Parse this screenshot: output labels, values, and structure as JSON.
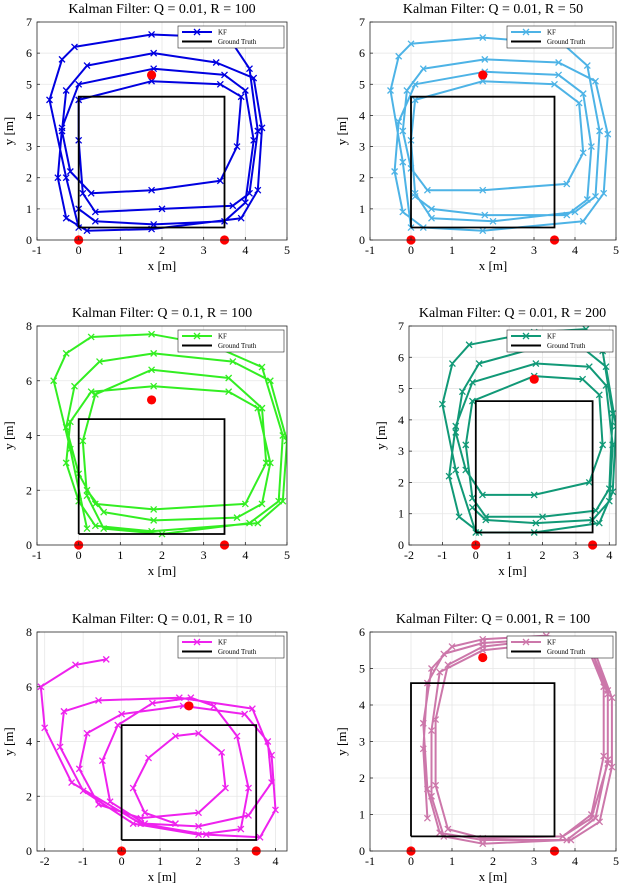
{
  "chart_data": [
    {
      "type": "line",
      "title_prefix": "Kalman Filter: ",
      "q": "Q = 0.01",
      "r": "R = 100",
      "xlabel": "x [m]",
      "ylabel": "y [m]",
      "xlim": [
        -1,
        5
      ],
      "ylim": [
        0,
        7
      ],
      "xticks": [
        -1,
        0,
        1,
        2,
        3,
        4,
        5
      ],
      "yticks": [
        0,
        1,
        2,
        3,
        4,
        5,
        6,
        7
      ],
      "grid": true,
      "legend": [
        "KF",
        "Ground Truth"
      ],
      "legend_position": "top-right",
      "kf_color": "#0000e0",
      "ground_truth": {
        "x": [
          0,
          0,
          3.5,
          3.5,
          0
        ],
        "y": [
          0.4,
          4.6,
          4.6,
          0.4,
          0.4
        ]
      },
      "landmarks": {
        "x": [
          0,
          3.5,
          1.75
        ],
        "y": [
          0,
          0,
          5.3
        ]
      },
      "kf": {
        "x": [
          0.0,
          -0.3,
          -0.7,
          -0.4,
          -0.1,
          1.75,
          3.6,
          4.1,
          4.3,
          4.1,
          3.7,
          2.0,
          0.4,
          0.1,
          0.0,
          0.0,
          1.75,
          3.4,
          3.9,
          3.8,
          3.4,
          1.75,
          0.3,
          -0.2,
          -0.4,
          -0.3,
          0.2,
          1.8,
          3.3,
          4.2,
          4.4,
          4.3,
          3.9,
          1.75,
          0.2,
          -0.3,
          -0.5,
          -0.4,
          0.0,
          1.8,
          3.5,
          4.0,
          4.2,
          4.0,
          3.5,
          1.8,
          0.4,
          0.0
        ],
        "y": [
          0.4,
          2.0,
          4.5,
          5.8,
          6.2,
          6.6,
          6.5,
          5.5,
          3.5,
          1.5,
          1.1,
          1.0,
          0.9,
          1.5,
          3.2,
          4.5,
          5.1,
          5.0,
          4.6,
          3.0,
          1.9,
          1.6,
          1.5,
          2.2,
          3.5,
          4.8,
          5.6,
          6.0,
          5.7,
          5.2,
          3.6,
          1.6,
          0.7,
          0.35,
          0.3,
          0.7,
          2.0,
          3.6,
          5.0,
          5.5,
          5.3,
          4.8,
          3.2,
          1.2,
          0.6,
          0.5,
          0.6,
          1.0
        ]
      }
    },
    {
      "type": "line",
      "title_prefix": "Kalman Filter: ",
      "q": "Q = 0.01",
      "r": "R = 50",
      "xlabel": "x [m]",
      "ylabel": "y [m]",
      "xlim": [
        -1,
        5
      ],
      "ylim": [
        0,
        7
      ],
      "xticks": [
        -1,
        0,
        1,
        2,
        3,
        4,
        5
      ],
      "yticks": [
        0,
        1,
        2,
        3,
        4,
        5,
        6,
        7
      ],
      "grid": true,
      "legend": [
        "KF",
        "Ground Truth"
      ],
      "legend_position": "top-right",
      "kf_color": "#4db3e6",
      "ground_truth": {
        "x": [
          0,
          0,
          3.5,
          3.5,
          0
        ],
        "y": [
          0.4,
          4.6,
          4.6,
          0.4,
          0.4
        ]
      },
      "landmarks": {
        "x": [
          0,
          3.5,
          1.75
        ],
        "y": [
          0,
          0,
          5.3
        ]
      },
      "kf": {
        "x": [
          0.0,
          -0.2,
          -0.5,
          -0.3,
          0.0,
          1.75,
          3.7,
          4.3,
          4.6,
          4.5,
          4.0,
          2.0,
          0.5,
          0.1,
          0.0,
          0.1,
          1.75,
          3.5,
          4.1,
          4.2,
          3.8,
          1.75,
          0.4,
          0.0,
          -0.2,
          -0.1,
          0.3,
          1.8,
          3.6,
          4.5,
          4.8,
          4.7,
          4.2,
          1.75,
          0.3,
          -0.2,
          -0.4,
          -0.3,
          0.1,
          1.8,
          3.6,
          4.2,
          4.4,
          4.3,
          3.8,
          1.8,
          0.5,
          0.1
        ],
        "y": [
          0.4,
          2.5,
          4.8,
          5.9,
          6.3,
          6.5,
          6.3,
          5.6,
          3.5,
          1.4,
          0.9,
          0.6,
          0.7,
          1.5,
          3.2,
          4.5,
          5.1,
          5.0,
          4.4,
          2.8,
          1.8,
          1.6,
          1.6,
          2.3,
          3.5,
          4.8,
          5.5,
          5.8,
          5.7,
          5.1,
          3.4,
          1.5,
          0.6,
          0.3,
          0.4,
          0.9,
          2.2,
          3.8,
          5.0,
          5.4,
          5.3,
          4.7,
          3.0,
          1.3,
          0.8,
          0.8,
          1.0,
          1.4
        ]
      }
    },
    {
      "type": "line",
      "title_prefix": "Kalman Filter: ",
      "q": "Q = 0.1",
      "r": "R = 100",
      "xlabel": "x [m]",
      "ylabel": "y [m]",
      "xlim": [
        -1,
        5
      ],
      "ylim": [
        0,
        8
      ],
      "xticks": [
        -1,
        0,
        1,
        2,
        3,
        4,
        5
      ],
      "yticks": [
        0,
        2,
        4,
        6,
        8
      ],
      "grid": true,
      "legend": [
        "KF",
        "Ground Truth"
      ],
      "legend_position": "top-right",
      "kf_color": "#33ee22",
      "ground_truth": {
        "x": [
          0,
          0,
          3.5,
          3.5,
          0
        ],
        "y": [
          0.4,
          4.6,
          4.6,
          0.4,
          0.4
        ]
      },
      "landmarks": {
        "x": [
          0,
          3.5,
          1.75
        ],
        "y": [
          0,
          0,
          5.3
        ]
      },
      "kf": {
        "x": [
          0.2,
          -0.2,
          -0.6,
          -0.3,
          0.3,
          1.75,
          3.2,
          4.4,
          4.9,
          4.8,
          4.1,
          2.0,
          0.6,
          0.2,
          0.1,
          0.4,
          1.75,
          3.6,
          4.4,
          4.5,
          4.0,
          1.8,
          0.4,
          0.0,
          -0.3,
          -0.1,
          0.5,
          1.8,
          3.7,
          4.6,
          5.0,
          4.9,
          4.3,
          1.75,
          0.4,
          0.0,
          -0.3,
          -0.2,
          0.3,
          1.8,
          3.6,
          4.3,
          4.6,
          4.4,
          3.8,
          1.8,
          0.6,
          0.2
        ],
        "y": [
          0.6,
          3.5,
          6.0,
          7.0,
          7.6,
          7.7,
          7.3,
          6.5,
          4.0,
          1.6,
          0.8,
          0.4,
          0.6,
          1.8,
          3.8,
          5.5,
          6.4,
          6.1,
          5.0,
          3.0,
          1.5,
          1.3,
          1.5,
          2.6,
          4.3,
          5.8,
          6.7,
          7.0,
          6.7,
          6.0,
          3.8,
          1.6,
          0.8,
          0.5,
          0.7,
          1.6,
          3.0,
          4.5,
          5.6,
          5.8,
          5.6,
          5.0,
          3.0,
          1.5,
          1.0,
          0.9,
          1.2,
          2.0
        ]
      }
    },
    {
      "type": "line",
      "title_prefix": "Kalman Filter: ",
      "q": "Q = 0.01",
      "r": "R = 200",
      "xlabel": "x [m]",
      "ylabel": "y [m]",
      "xlim": [
        -2,
        4.2
      ],
      "ylim": [
        0,
        7
      ],
      "xticks": [
        -2,
        -1,
        0,
        1,
        2,
        3,
        4
      ],
      "yticks": [
        0,
        1,
        2,
        3,
        4,
        5,
        6,
        7
      ],
      "grid": true,
      "legend": [
        "KF",
        "Ground Truth"
      ],
      "legend_position": "top-right",
      "kf_color": "#119977",
      "ground_truth": {
        "x": [
          0,
          0,
          3.5,
          3.5,
          0
        ],
        "y": [
          0.4,
          4.6,
          4.6,
          0.4,
          0.4
        ]
      },
      "landmarks": {
        "x": [
          0,
          3.5,
          1.75
        ],
        "y": [
          0,
          0,
          5.3
        ]
      },
      "kf": {
        "x": [
          0.0,
          -0.6,
          -1.0,
          -0.7,
          -0.2,
          1.75,
          3.3,
          3.8,
          4.1,
          4.0,
          3.6,
          2.0,
          0.3,
          -0.1,
          -0.3,
          -0.1,
          1.75,
          3.2,
          3.7,
          3.8,
          3.4,
          1.75,
          0.2,
          -0.3,
          -0.6,
          -0.4,
          0.1,
          1.8,
          3.2,
          3.9,
          4.2,
          4.1,
          3.7,
          1.75,
          0.1,
          -0.5,
          -0.8,
          -0.6,
          -0.1,
          1.8,
          3.4,
          3.9,
          4.1,
          4.0,
          3.5,
          1.8,
          0.3,
          -0.1
        ],
        "y": [
          0.4,
          2.4,
          4.5,
          5.8,
          6.4,
          6.8,
          6.9,
          6.2,
          4.2,
          1.8,
          1.1,
          0.9,
          0.9,
          1.5,
          3.2,
          4.6,
          5.4,
          5.3,
          4.8,
          3.2,
          2.0,
          1.6,
          1.6,
          2.4,
          3.6,
          4.9,
          5.8,
          6.3,
          6.3,
          5.7,
          3.8,
          1.7,
          0.7,
          0.4,
          0.4,
          0.9,
          2.2,
          3.8,
          5.2,
          5.8,
          5.7,
          5.1,
          3.2,
          1.4,
          0.8,
          0.7,
          0.8,
          1.2
        ]
      }
    },
    {
      "type": "line",
      "title_prefix": "Kalman Filter: ",
      "q": "Q = 0.01",
      "r": "R = 10",
      "xlabel": "x [m]",
      "ylabel": "y [m]",
      "xlim": [
        -2.2,
        4.3
      ],
      "ylim": [
        0,
        8
      ],
      "xticks": [
        -2,
        -1,
        0,
        1,
        2,
        3,
        4
      ],
      "yticks": [
        0,
        2,
        4,
        6,
        8
      ],
      "grid": true,
      "legend": [
        "KF",
        "Ground Truth"
      ],
      "legend_position": "top-right",
      "kf_color": "#ee22ee",
      "ground_truth": {
        "x": [
          0,
          0,
          3.5,
          3.5,
          0
        ],
        "y": [
          0.4,
          4.6,
          4.6,
          0.4,
          0.4
        ]
      },
      "landmarks": {
        "x": [
          0,
          3.5,
          1.75
        ],
        "y": [
          0,
          0,
          5.3
        ]
      },
      "kf": {
        "x": [
          -0.4,
          -1.2,
          -2.1,
          -2.0,
          -1.3,
          0.5,
          2.2,
          3.6,
          4.0,
          3.9,
          3.4,
          1.5,
          -0.6,
          -1.5,
          -1.6,
          -1.0,
          0.3,
          2.0,
          3.1,
          3.3,
          3.0,
          2.4,
          1.8,
          0.8,
          -0.1,
          -0.5,
          -0.3,
          0.6,
          2.0,
          3.3,
          3.9,
          3.8,
          3.2,
          1.6,
          0.0,
          -0.9,
          -1.1,
          -0.6,
          0.5,
          2.0,
          2.7,
          2.6,
          2.0,
          1.4,
          0.7,
          0.3,
          0.6,
          1.4
        ],
        "y": [
          7.0,
          6.8,
          6.0,
          4.5,
          2.5,
          1.0,
          0.6,
          0.5,
          1.5,
          3.5,
          5.2,
          5.6,
          5.5,
          5.1,
          3.8,
          2.2,
          1.0,
          0.6,
          0.8,
          2.3,
          4.2,
          5.3,
          5.6,
          5.4,
          4.6,
          3.3,
          1.8,
          1.0,
          0.9,
          1.3,
          2.5,
          4.0,
          5.0,
          5.3,
          5.0,
          4.3,
          3.0,
          1.7,
          1.2,
          1.4,
          2.3,
          3.6,
          4.3,
          4.2,
          3.4,
          2.3,
          1.4,
          1.0
        ]
      }
    },
    {
      "type": "line",
      "title_prefix": "Kalman Filter: ",
      "q": "Q = 0.001",
      "r": "R = 100",
      "xlabel": "x [m]",
      "ylabel": "y [m]",
      "xlim": [
        -1,
        5
      ],
      "ylim": [
        0,
        6
      ],
      "xticks": [
        -1,
        0,
        1,
        2,
        3,
        4,
        5
      ],
      "yticks": [
        0,
        1,
        2,
        3,
        4,
        5,
        6
      ],
      "grid": true,
      "legend": [
        "KF",
        "Ground Truth"
      ],
      "legend_position": "top-right",
      "kf_color": "#cc77aa",
      "ground_truth": {
        "x": [
          0,
          0,
          3.5,
          3.5,
          0
        ],
        "y": [
          0.4,
          4.6,
          4.6,
          0.4,
          0.4
        ]
      },
      "landmarks": {
        "x": [
          0,
          3.5,
          1.75
        ],
        "y": [
          0,
          0,
          5.3
        ]
      },
      "kf": {
        "x": [
          0.4,
          0.3,
          0.4,
          0.8,
          1.75,
          3.2,
          4.4,
          4.8,
          4.8,
          4.5,
          3.8,
          1.75,
          0.8,
          0.5,
          0.5,
          0.7,
          1.75,
          3.4,
          4.5,
          4.9,
          4.9,
          4.6,
          3.9,
          1.75,
          0.7,
          0.4,
          0.3,
          0.5,
          1.0,
          1.75,
          3.3,
          4.3,
          4.7,
          4.7,
          4.4,
          3.7,
          1.75,
          0.9,
          0.6,
          0.6,
          0.9,
          1.75,
          3.3,
          4.4,
          4.8,
          4.8,
          4.4,
          3.7
        ],
        "y": [
          0.9,
          2.8,
          4.6,
          5.4,
          5.7,
          5.8,
          5.5,
          4.4,
          2.5,
          0.9,
          0.3,
          0.2,
          0.4,
          1.5,
          3.3,
          4.9,
          5.5,
          5.7,
          5.4,
          4.2,
          2.3,
          0.8,
          0.3,
          0.3,
          0.5,
          1.7,
          3.5,
          5.0,
          5.6,
          5.8,
          5.9,
          5.6,
          4.5,
          2.6,
          1.0,
          0.4,
          0.35,
          0.6,
          1.8,
          3.6,
          5.1,
          5.6,
          5.8,
          5.5,
          4.3,
          2.4,
          0.9,
          0.4
        ]
      }
    }
  ]
}
